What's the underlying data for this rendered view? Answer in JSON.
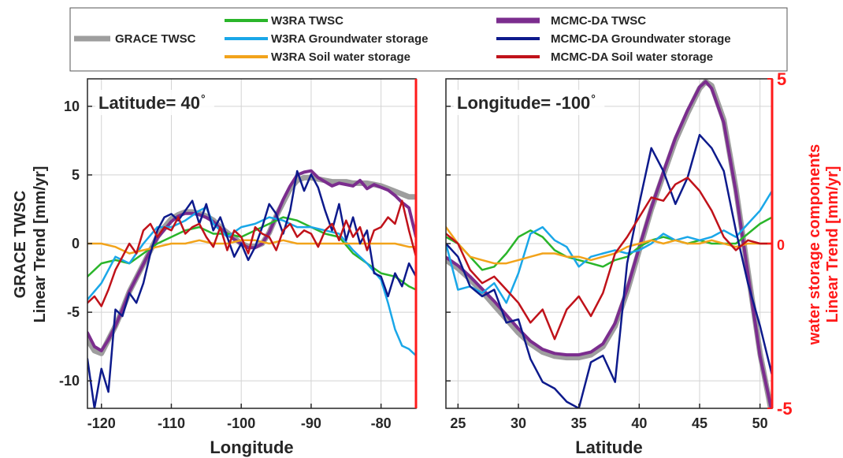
{
  "legend": {
    "items": [
      {
        "label": "GRACE TWSC",
        "color": "#9e9e9e"
      },
      {
        "label": "W3RA TWSC",
        "color": "#2ab52a"
      },
      {
        "label": "W3RA Groundwater storage",
        "color": "#1aa7e8"
      },
      {
        "label": "W3RA Soil water storage",
        "color": "#f2a31b"
      },
      {
        "label": "MCMC-DA TWSC",
        "color": "#7b2d8e"
      },
      {
        "label": "MCMC-DA Groundwater storage",
        "color": "#0d1a8c"
      },
      {
        "label": "MCMC-DA Soil water storage",
        "color": "#c0121a"
      }
    ]
  },
  "left_axis_label": {
    "line1": "GRACE TWSC",
    "line2": "Linear Trend [mm/yr]"
  },
  "right_axis_label": {
    "line1": "water storage components",
    "line2": "Linear Trend [mm/yr]"
  },
  "colors": {
    "right_axis": "#ff1a1a",
    "grid": "#d3d3d3",
    "frame": "#262626"
  },
  "chart_data": [
    {
      "type": "line",
      "annotation": "Latitude= 40",
      "annotation_degree": "°",
      "xlabel": "Longitude",
      "xlim": [
        -122,
        -75
      ],
      "ylim": [
        -12,
        12
      ],
      "xticks": [
        -120,
        -110,
        -100,
        -90,
        -80
      ],
      "yticks": [
        -10,
        -5,
        0,
        5,
        10
      ],
      "grid": true,
      "series": [
        {
          "name": "GRACE TWSC",
          "axis": "left",
          "x": [
            -122,
            -121,
            -120,
            -119,
            -118,
            -117,
            -116,
            -115,
            -114,
            -113,
            -112,
            -111,
            -110,
            -109,
            -108,
            -107,
            -106,
            -105,
            -104,
            -103,
            -102,
            -101,
            -100,
            -99,
            -98,
            -97,
            -96,
            -95,
            -94,
            -93,
            -92,
            -91,
            -90,
            -89,
            -88,
            -87,
            -86,
            -85,
            -84,
            -83,
            -82,
            -81,
            -80,
            -79,
            -78,
            -77,
            -76,
            -75
          ],
          "y": [
            -7,
            -7.8,
            -8,
            -7,
            -6,
            -4.8,
            -3.5,
            -2.5,
            -1.5,
            -0.5,
            0.5,
            1.2,
            1.8,
            2.1,
            2.3,
            2.3,
            2.2,
            2,
            1.7,
            1.2,
            0.8,
            0.4,
            0,
            -0.2,
            -0.2,
            0,
            0.8,
            2,
            3,
            4,
            4.6,
            4.8,
            4.8,
            4.7,
            4.6,
            4.5,
            4.5,
            4.5,
            4.4,
            4.4,
            4.4,
            4.3,
            4.2,
            4,
            3.8,
            3.6,
            3.4,
            3.4
          ]
        },
        {
          "name": "W3RA TWSC",
          "axis": "right",
          "x": [
            -122,
            -120,
            -118,
            -116,
            -114,
            -112,
            -110,
            -108,
            -106,
            -104,
            -102,
            -100,
            -98,
            -96,
            -94,
            -92,
            -90,
            -88,
            -86,
            -84,
            -82,
            -80,
            -78,
            -76,
            -75
          ],
          "y": [
            -1,
            -0.6,
            -0.5,
            -0.6,
            -0.3,
            0,
            0.2,
            0.4,
            0.5,
            0.3,
            0.3,
            0.2,
            0.4,
            0.6,
            0.8,
            0.7,
            0.5,
            0.3,
            0.2,
            -0.3,
            -0.6,
            -0.9,
            -1,
            -1.3,
            -1.4
          ]
        },
        {
          "name": "W3RA Groundwater storage",
          "axis": "right",
          "x": [
            -122,
            -120,
            -118,
            -116,
            -114,
            -112,
            -110,
            -108,
            -106,
            -105,
            -104,
            -102,
            -100,
            -98,
            -96,
            -94,
            -92,
            -90,
            -88,
            -86,
            -84,
            -82,
            -80,
            -79,
            -78,
            -77,
            -76,
            -75
          ],
          "y": [
            -1.7,
            -1.2,
            -0.4,
            -0.6,
            0,
            0.5,
            0.5,
            0.7,
            1,
            1.1,
            0.6,
            0.2,
            0.5,
            0.6,
            0.8,
            0.7,
            0.5,
            0.5,
            0.4,
            0.3,
            -0.2,
            -0.6,
            -1.1,
            -1.8,
            -2.6,
            -3.1,
            -3.2,
            -3.4
          ]
        },
        {
          "name": "W3RA Soil water storage",
          "axis": "right",
          "x": [
            -122,
            -120,
            -118,
            -116,
            -114,
            -112,
            -110,
            -108,
            -106,
            -104,
            -102,
            -100,
            -98,
            -96,
            -94,
            -92,
            -90,
            -88,
            -86,
            -84,
            -82,
            -80,
            -78,
            -76,
            -75
          ],
          "y": [
            0,
            0,
            -0.1,
            -0.3,
            -0.2,
            -0.1,
            0,
            0,
            0.1,
            0,
            0,
            0.1,
            0.1,
            0,
            0.1,
            0,
            0,
            0,
            0,
            0,
            0,
            0,
            0,
            -0.1,
            -0.1
          ]
        },
        {
          "name": "MCMC-DA TWSC",
          "axis": "left",
          "x": [
            -122,
            -121,
            -120,
            -119,
            -118,
            -117,
            -116,
            -115,
            -114,
            -113,
            -112,
            -111,
            -110,
            -109,
            -108,
            -107,
            -106,
            -105,
            -104,
            -103,
            -102,
            -101,
            -100,
            -99,
            -98,
            -97,
            -96,
            -95,
            -94,
            -93,
            -92,
            -91,
            -90,
            -89,
            -88,
            -87,
            -86,
            -85,
            -84,
            -83,
            -82,
            -81,
            -80,
            -79,
            -78,
            -77,
            -76,
            -75
          ],
          "y": [
            -6.5,
            -7.5,
            -7.8,
            -7,
            -6,
            -4.8,
            -3.5,
            -2.5,
            -1.5,
            -0.5,
            0.4,
            1,
            1.6,
            2,
            2.2,
            2.2,
            2.1,
            1.9,
            1.6,
            1.1,
            0.7,
            0.3,
            0,
            -0.3,
            -0.3,
            0,
            0.8,
            2,
            3.2,
            4.2,
            5,
            5.2,
            5.3,
            4.8,
            4.5,
            4.2,
            4.4,
            4.3,
            4.2,
            4.6,
            4,
            4.3,
            4.1,
            3.9,
            3.5,
            3,
            2.6,
            0.5
          ]
        },
        {
          "name": "MCMC-DA Groundwater storage",
          "axis": "right",
          "x": [
            -122,
            -121,
            -120,
            -119,
            -118,
            -117,
            -116,
            -115,
            -114,
            -113,
            -112,
            -111,
            -110,
            -109,
            -108,
            -107,
            -106,
            -105,
            -104,
            -103,
            -102,
            -101,
            -100,
            -99,
            -98,
            -97,
            -96,
            -95,
            -94,
            -93,
            -92,
            -91,
            -90,
            -89,
            -88,
            -87,
            -86,
            -85,
            -84,
            -83,
            -82,
            -81,
            -80,
            -79,
            -78,
            -77,
            -76,
            -75
          ],
          "y": [
            -3.5,
            -5,
            -3.8,
            -4.5,
            -2,
            -2.2,
            -1.5,
            -1.8,
            -1.2,
            -0.3,
            0.4,
            0.8,
            0.9,
            0.7,
            1,
            1.3,
            0.6,
            1.2,
            0.4,
            0.8,
            0.2,
            -0.4,
            0,
            -0.5,
            -0.1,
            0.5,
            1.2,
            0.9,
            0.3,
            1,
            2.2,
            1.6,
            2.1,
            1.7,
            1,
            0.4,
            1.2,
            0.1,
            0.8,
            0,
            0.4,
            -0.9,
            -1,
            -1.6,
            -0.9,
            -1.3,
            -0.6,
            -1
          ]
        },
        {
          "name": "MCMC-DA Soil water storage",
          "axis": "right",
          "x": [
            -122,
            -121,
            -120,
            -119,
            -118,
            -117,
            -116,
            -115,
            -114,
            -113,
            -112,
            -111,
            -110,
            -109,
            -108,
            -107,
            -106,
            -105,
            -104,
            -103,
            -102,
            -101,
            -100,
            -99,
            -98,
            -97,
            -96,
            -95,
            -94,
            -93,
            -92,
            -91,
            -90,
            -89,
            -88,
            -87,
            -86,
            -85,
            -84,
            -83,
            -82,
            -81,
            -80,
            -79,
            -78,
            -77,
            -76,
            -75
          ],
          "y": [
            -1.8,
            -1.6,
            -1.9,
            -1.4,
            -0.8,
            -0.4,
            0,
            -0.3,
            0.4,
            0.6,
            0.2,
            0.5,
            0.4,
            0.8,
            0.3,
            0.5,
            0.6,
            0.2,
            -0.1,
            0.5,
            -0.2,
            0.4,
            0.2,
            -0.3,
            0.5,
            0.3,
            0.2,
            -0.2,
            0.4,
            0.6,
            0.2,
            0.4,
            0.3,
            -0.1,
            0.4,
            0.6,
            0.1,
            0.7,
            0.2,
            0.5,
            -0.2,
            0.4,
            0.5,
            0.8,
            0.6,
            1.3,
            0.4,
            -0.4
          ]
        }
      ]
    },
    {
      "type": "line",
      "annotation": "Longitude= -100",
      "annotation_degree": "°",
      "xlabel": "Latitude",
      "xlim": [
        24,
        51
      ],
      "ylim": [
        -12,
        12
      ],
      "right_ylim": [
        -5,
        5
      ],
      "xticks": [
        25,
        30,
        35,
        40,
        45,
        50
      ],
      "yticks": [
        -10,
        -5,
        0,
        5,
        10
      ],
      "right_yticks": [
        -5,
        0,
        5
      ],
      "grid": true,
      "series": [
        {
          "name": "GRACE TWSC",
          "axis": "left",
          "x": [
            24,
            25,
            26,
            27,
            28,
            29,
            30,
            31,
            32,
            33,
            34,
            35,
            36,
            37,
            38,
            39,
            40,
            41,
            42,
            43,
            44,
            45,
            45.5,
            46,
            47,
            48,
            49,
            50,
            51
          ],
          "y": [
            -1.2,
            -1.8,
            -2.6,
            -3.5,
            -4.5,
            -5.5,
            -6.5,
            -7.3,
            -7.9,
            -8.2,
            -8.3,
            -8.3,
            -8.1,
            -7.5,
            -6,
            -3.5,
            -0.5,
            2.5,
            5,
            7.5,
            9.5,
            11.3,
            11.8,
            11.5,
            9,
            4,
            -2,
            -8,
            -12.5
          ]
        },
        {
          "name": "W3RA TWSC",
          "axis": "right",
          "x": [
            24,
            25,
            26,
            27,
            28,
            29,
            30,
            31,
            32,
            33,
            34,
            35,
            36,
            37,
            38,
            39,
            40,
            41,
            42,
            43,
            44,
            45,
            46,
            47,
            48,
            49,
            50,
            51
          ],
          "y": [
            0.2,
            0,
            -0.4,
            -0.8,
            -0.7,
            -0.3,
            0.2,
            0.4,
            0.2,
            -0.2,
            -0.4,
            -0.5,
            -0.6,
            -0.7,
            -0.5,
            -0.4,
            -0.1,
            0.1,
            0.2,
            0.1,
            0,
            0.1,
            0,
            0,
            0,
            0.3,
            0.6,
            0.8
          ]
        },
        {
          "name": "W3RA Groundwater storage",
          "axis": "right",
          "x": [
            24,
            25,
            26,
            27,
            28,
            29,
            30,
            31,
            32,
            33,
            34,
            35,
            36,
            37,
            38,
            39,
            40,
            41,
            42,
            43,
            44,
            45,
            46,
            47,
            48,
            49,
            50,
            51
          ],
          "y": [
            0,
            -1.4,
            -1.3,
            -1.5,
            -1.2,
            -1.8,
            -0.9,
            0.3,
            0.5,
            0.1,
            -0.1,
            -0.7,
            -0.4,
            -0.3,
            -0.2,
            -0.3,
            -0.2,
            0,
            0.3,
            0.1,
            0.2,
            0.1,
            0.2,
            0.4,
            0.2,
            0.6,
            1,
            1.6
          ]
        },
        {
          "name": "W3RA Soil water storage",
          "axis": "right",
          "x": [
            24,
            25,
            26,
            27,
            28,
            29,
            30,
            31,
            32,
            33,
            34,
            35,
            36,
            37,
            38,
            39,
            40,
            41,
            42,
            43,
            44,
            45,
            46,
            47,
            48,
            49,
            50,
            51
          ],
          "y": [
            0.5,
            0,
            -0.4,
            -0.5,
            -0.6,
            -0.6,
            -0.5,
            -0.4,
            -0.3,
            -0.3,
            -0.4,
            -0.4,
            -0.5,
            -0.4,
            -0.3,
            -0.1,
            0,
            0.1,
            0,
            0.1,
            0,
            0,
            0.1,
            0,
            -0.1,
            0,
            0,
            0
          ]
        },
        {
          "name": "MCMC-DA TWSC",
          "axis": "left",
          "x": [
            24,
            25,
            26,
            27,
            28,
            29,
            30,
            31,
            32,
            33,
            34,
            35,
            36,
            37,
            38,
            39,
            40,
            41,
            42,
            43,
            44,
            45,
            45.5,
            46,
            47,
            48,
            49,
            50,
            51
          ],
          "y": [
            -1,
            -1.6,
            -2.4,
            -3.3,
            -4.2,
            -5.2,
            -6.2,
            -7.1,
            -7.7,
            -8,
            -8.1,
            -8.1,
            -7.9,
            -7.3,
            -5.8,
            -3.3,
            -0.3,
            2.6,
            5.2,
            7.7,
            9.7,
            11.4,
            11.8,
            11.3,
            8.8,
            3.8,
            -2.2,
            -8.2,
            -12.3
          ]
        },
        {
          "name": "MCMC-DA Groundwater storage",
          "axis": "right",
          "x": [
            24,
            25,
            26,
            27,
            28,
            29,
            30,
            31,
            32,
            33,
            34,
            35,
            36,
            37,
            38,
            39,
            40,
            41,
            42,
            43,
            44,
            45,
            46,
            47,
            48,
            49,
            50,
            51
          ],
          "y": [
            0,
            -0.4,
            -1.3,
            -1.6,
            -1.4,
            -2.4,
            -2.3,
            -3.5,
            -4.2,
            -4.4,
            -4.8,
            -5,
            -3.6,
            -3.4,
            -4.2,
            -0.6,
            1.2,
            2.9,
            2.2,
            1.2,
            2,
            3.3,
            2.9,
            2.2,
            0.4,
            -1.2,
            -2.5,
            -4
          ]
        },
        {
          "name": "MCMC-DA Soil water storage",
          "axis": "right",
          "x": [
            24,
            25,
            26,
            27,
            28,
            29,
            30,
            31,
            32,
            33,
            34,
            35,
            36,
            37,
            38,
            39,
            40,
            41,
            42,
            43,
            44,
            45,
            46,
            47,
            48,
            49,
            50,
            51
          ],
          "y": [
            0.3,
            0,
            -0.8,
            -1.2,
            -1,
            -1.4,
            -1.8,
            -2.4,
            -2,
            -2.9,
            -2,
            -1.6,
            -2.2,
            -1.5,
            -0.3,
            0.2,
            0.8,
            1.4,
            1.3,
            1.8,
            2,
            1.6,
            1,
            0.2,
            -0.2,
            0.1,
            0,
            0
          ]
        }
      ]
    }
  ]
}
